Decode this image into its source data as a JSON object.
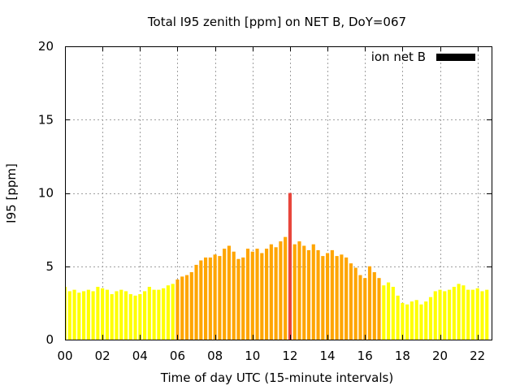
{
  "colors": {
    "yellow": "#ffff00",
    "orange": "#ffa500",
    "red": "#e8453c",
    "legend": "#000000"
  },
  "chart_data": {
    "type": "bar",
    "title": "Total I95 zenith [ppm] on NET B, DoY=067",
    "xlabel": "Time of day UTC (15-minute intervals)",
    "ylabel": "I95 [ppm]",
    "legend": "ion net B",
    "legend_position": "top-right",
    "grid": true,
    "xlim": [
      0,
      22.75
    ],
    "ylim": [
      0,
      20
    ],
    "x_tick_labels": [
      "00",
      "02",
      "04",
      "06",
      "08",
      "10",
      "12",
      "14",
      "16",
      "18",
      "20",
      "22"
    ],
    "y_tick_labels": [
      "0",
      "5",
      "10",
      "15",
      "20"
    ],
    "interval_hours": 0.25,
    "values": [
      3.6,
      3.3,
      3.4,
      3.2,
      3.3,
      3.4,
      3.3,
      3.6,
      3.5,
      3.4,
      3.1,
      3.3,
      3.4,
      3.3,
      3.1,
      3.0,
      3.1,
      3.3,
      3.6,
      3.4,
      3.4,
      3.5,
      3.7,
      3.8,
      4.1,
      4.3,
      4.4,
      4.6,
      5.1,
      5.4,
      5.6,
      5.6,
      5.8,
      5.7,
      6.2,
      6.4,
      6.0,
      5.5,
      5.6,
      6.2,
      6.0,
      6.2,
      5.9,
      6.2,
      6.5,
      6.3,
      6.7,
      7.0,
      10.0,
      6.5,
      6.7,
      6.4,
      6.1,
      6.5,
      6.1,
      5.7,
      5.9,
      6.1,
      5.7,
      5.8,
      5.6,
      5.2,
      4.9,
      4.4,
      4.2,
      5.0,
      4.6,
      4.2,
      3.7,
      3.9,
      3.6,
      3.0,
      2.5,
      2.4,
      2.6,
      2.7,
      2.4,
      2.6,
      2.9,
      3.3,
      3.4,
      3.3,
      3.4,
      3.6,
      3.8,
      3.7,
      3.4,
      3.4,
      3.5,
      3.3,
      3.4
    ],
    "bar_colors": [
      "yellow",
      "yellow",
      "yellow",
      "yellow",
      "yellow",
      "yellow",
      "yellow",
      "yellow",
      "yellow",
      "yellow",
      "yellow",
      "yellow",
      "yellow",
      "yellow",
      "yellow",
      "yellow",
      "yellow",
      "yellow",
      "yellow",
      "yellow",
      "yellow",
      "yellow",
      "yellow",
      "yellow",
      "orange",
      "orange",
      "orange",
      "orange",
      "orange",
      "orange",
      "orange",
      "orange",
      "orange",
      "orange",
      "orange",
      "orange",
      "orange",
      "orange",
      "orange",
      "orange",
      "orange",
      "orange",
      "orange",
      "orange",
      "orange",
      "orange",
      "orange",
      "orange",
      "red",
      "orange",
      "orange",
      "orange",
      "orange",
      "orange",
      "orange",
      "orange",
      "orange",
      "orange",
      "orange",
      "orange",
      "orange",
      "orange",
      "orange",
      "orange",
      "orange",
      "orange",
      "orange",
      "orange",
      "yellow",
      "yellow",
      "yellow",
      "yellow",
      "yellow",
      "yellow",
      "yellow",
      "yellow",
      "yellow",
      "yellow",
      "yellow",
      "yellow",
      "yellow",
      "yellow",
      "yellow",
      "yellow",
      "yellow",
      "yellow",
      "yellow",
      "yellow",
      "yellow",
      "yellow",
      "yellow"
    ]
  }
}
